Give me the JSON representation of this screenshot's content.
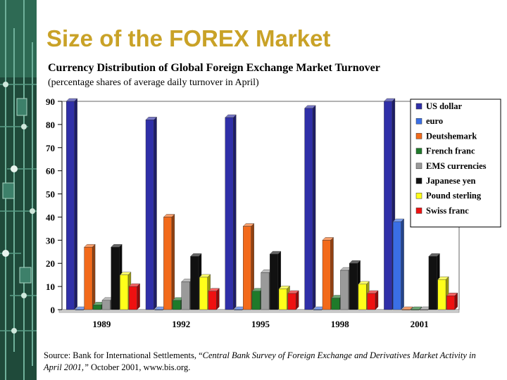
{
  "slide": {
    "title": "Size of the FOREX Market"
  },
  "chart_data": {
    "type": "bar",
    "title": "Currency Distribution of Global Foreign Exchange Market Turnover",
    "subtitle": "(percentage shares of average daily turnover in April)",
    "categories": [
      "1989",
      "1992",
      "1995",
      "1998",
      "2001"
    ],
    "ylim": [
      0,
      90
    ],
    "yticks": [
      0,
      10,
      20,
      30,
      40,
      50,
      60,
      70,
      80,
      90
    ],
    "legend_position": "top-right",
    "series": [
      {
        "name": "US dollar",
        "color": "#2f2fa8",
        "values": [
          90,
          82,
          83,
          87,
          90
        ]
      },
      {
        "name": "euro",
        "color": "#3a6fe6",
        "values": [
          0,
          0,
          0,
          0,
          38
        ]
      },
      {
        "name": "Deutshemark",
        "color": "#f26a1b",
        "values": [
          27,
          40,
          36,
          30,
          0
        ]
      },
      {
        "name": "French franc",
        "color": "#1f7a2a",
        "values": [
          2,
          4,
          8,
          5,
          0
        ]
      },
      {
        "name": "EMS currencies",
        "color": "#9a9a9a",
        "values": [
          4,
          12,
          16,
          17,
          0
        ]
      },
      {
        "name": "Japanese yen",
        "color": "#111111",
        "values": [
          27,
          23,
          24,
          20,
          23
        ]
      },
      {
        "name": "Pound sterling",
        "color": "#ffff1a",
        "values": [
          15,
          14,
          9,
          11,
          13
        ]
      },
      {
        "name": "Swiss franc",
        "color": "#ee1111",
        "values": [
          10,
          8,
          7,
          7,
          6
        ]
      }
    ]
  },
  "source": {
    "prefix": "Source: Bank for International Settlements, “",
    "italic": "Central Bank Survey of Foreign Exchange and Derivatives Market Activity in April 2001,”",
    "suffix": " October 2001, www.bis.org."
  }
}
